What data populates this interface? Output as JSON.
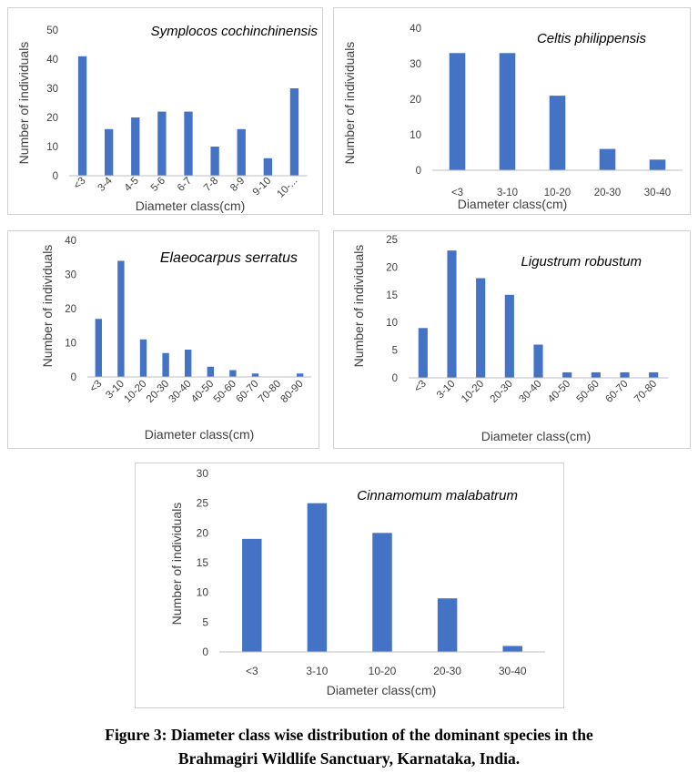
{
  "chart_data": [
    {
      "type": "bar",
      "title": "Symplocos cochinchinensis",
      "xlabel": "Diameter class(cm)",
      "ylabel": "Number of individuals",
      "categories": [
        "<3",
        "3-4",
        "4-5",
        "5-6",
        "6-7",
        "7-8",
        "8-9",
        "9-10",
        "10-..."
      ],
      "values": [
        41,
        16,
        20,
        22,
        22,
        10,
        16,
        6,
        30
      ],
      "ylim": [
        0,
        50
      ],
      "yticks": [
        "0",
        "10",
        "20",
        "30",
        "40",
        "50"
      ],
      "color": "#4472c4",
      "grid": false
    },
    {
      "type": "bar",
      "title": "Celtis philippensis",
      "xlabel": "Diameter class(cm)",
      "ylabel": "Number of individuals",
      "categories": [
        "<3",
        "3-10",
        "10-20",
        "20-30",
        "30-40"
      ],
      "values": [
        33,
        33,
        21,
        6,
        3
      ],
      "ylim": [
        0,
        40
      ],
      "yticks": [
        "0",
        "10",
        "20",
        "30",
        "40"
      ],
      "color": "#4472c4",
      "grid": false
    },
    {
      "type": "bar",
      "title": "Elaeocarpus serratus",
      "xlabel": "Diameter class(cm)",
      "ylabel": "Number of individuals",
      "categories": [
        "<3",
        "3-10",
        "10-20",
        "20-30",
        "30-40",
        "40-50",
        "50-60",
        "60-70",
        "70-80",
        "80-90"
      ],
      "values": [
        17,
        34,
        11,
        7,
        8,
        3,
        2,
        1,
        0,
        1
      ],
      "ylim": [
        0,
        40
      ],
      "yticks": [
        "0",
        "10",
        "20",
        "30",
        "40"
      ],
      "color": "#4472c4",
      "grid": false
    },
    {
      "type": "bar",
      "title": "Ligustrum robustum",
      "xlabel": "Diameter class(cm)",
      "ylabel": "Number of individuals",
      "categories": [
        "<3",
        "3-10",
        "10-20",
        "20-30",
        "30-40",
        "40-50",
        "50-60",
        "60-70",
        "70-80"
      ],
      "values": [
        9,
        23,
        18,
        15,
        6,
        1,
        1,
        1,
        1
      ],
      "ylim": [
        0,
        25
      ],
      "yticks": [
        "0",
        "5",
        "10",
        "15",
        "20",
        "25"
      ],
      "color": "#4472c4",
      "grid": false
    },
    {
      "type": "bar",
      "title": "Cinnamomum malabatrum",
      "xlabel": "Diameter class(cm)",
      "ylabel": "Number of individuals",
      "categories": [
        "<3",
        "3-10",
        "10-20",
        "20-30",
        "30-40"
      ],
      "values": [
        19,
        25,
        20,
        9,
        1
      ],
      "ylim": [
        0,
        30
      ],
      "yticks": [
        "0",
        "5",
        "10",
        "15",
        "20",
        "25",
        "30"
      ],
      "color": "#4472c4",
      "grid": false
    }
  ],
  "caption": {
    "line1": "Figure 3: Diameter class wise distribution of the dominant species in the",
    "line2": "Brahmagiri Wildlife Sanctuary, Karnataka, India."
  }
}
